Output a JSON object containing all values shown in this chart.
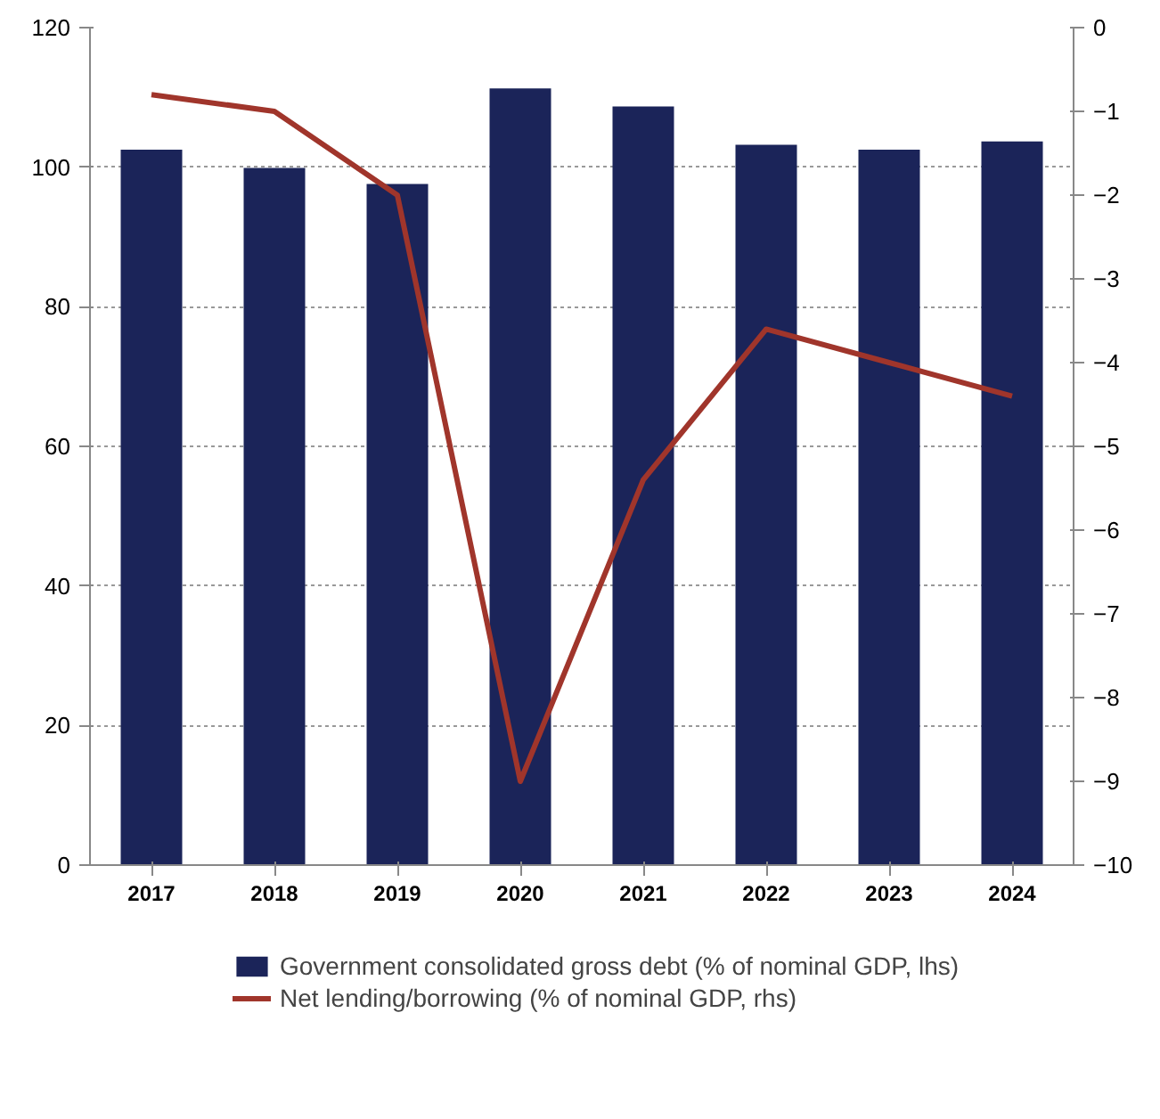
{
  "chart_data": {
    "type": "bar",
    "categories": [
      "2017",
      "2018",
      "2019",
      "2020",
      "2021",
      "2022",
      "2023",
      "2024"
    ],
    "series": [
      {
        "name": "Government consolidated gross debt (% of nominal GDP, lhs)",
        "type": "bar",
        "color": "#1b2459",
        "values": [
          102.5,
          99.9,
          97.6,
          111.3,
          108.7,
          103.2,
          102.5,
          103.7
        ]
      },
      {
        "name": "Net lending/borrowing (% of nominal GDP, rhs)",
        "type": "line",
        "axis": "y2",
        "color": "#a0352b",
        "values": [
          -0.8,
          -1.0,
          -2.0,
          -9.0,
          -5.4,
          -3.6,
          -4.0,
          -4.4
        ]
      }
    ],
    "ylim": [
      0,
      120
    ],
    "yticks": [
      0,
      20,
      40,
      60,
      80,
      100,
      120
    ],
    "y2lim": [
      -10,
      0
    ],
    "y2ticks": [
      -10,
      -9,
      -8,
      -7,
      -6,
      -5,
      -4,
      -3,
      -2,
      -1,
      0
    ],
    "grid": "y",
    "legend": "bottom",
    "marker": "none",
    "line_style": "solid"
  }
}
